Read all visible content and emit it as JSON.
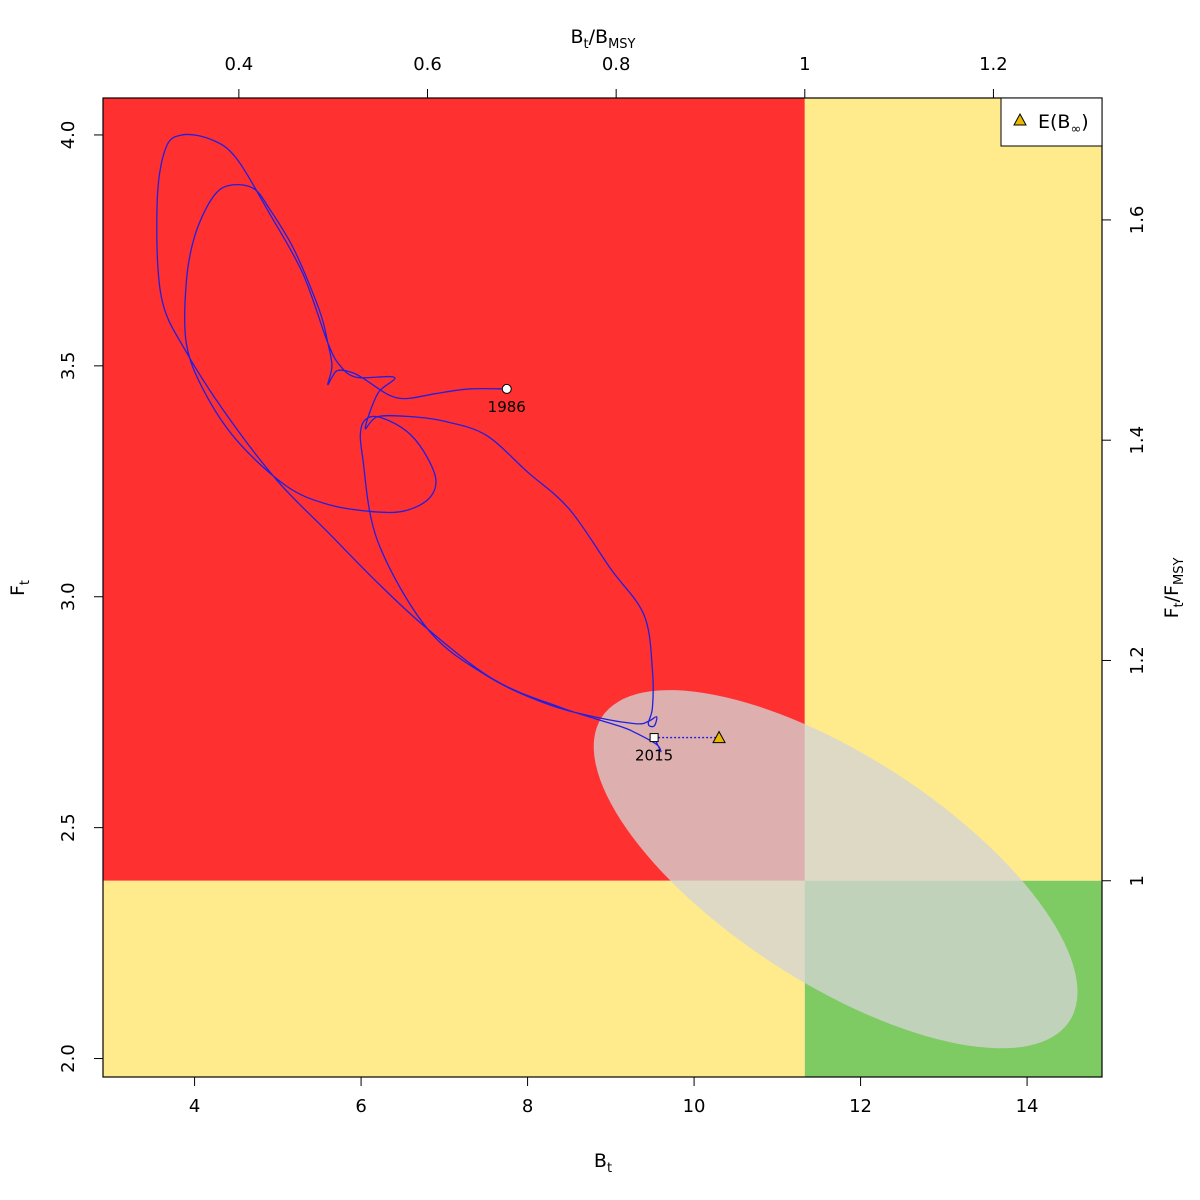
{
  "chart_data": {
    "type": "scatter",
    "title": "",
    "colors": {
      "red_zone": "#ff3030",
      "yellow_zone": "#ffeb8c",
      "green_zone": "#7ecb63",
      "trajectory": "#2020e0",
      "ellipse": "#d3d3d3",
      "triangle": "#e8b800"
    },
    "axes": {
      "x_bottom": {
        "label_main": "B",
        "label_sub": "t",
        "range": [
          2.9,
          14.9
        ],
        "ticks": [
          "4",
          "6",
          "8",
          "10",
          "12",
          "14"
        ],
        "tick_values": [
          4,
          6,
          8,
          10,
          12,
          14
        ]
      },
      "y_left": {
        "label_main": "F",
        "label_sub": "t",
        "range": [
          1.96,
          4.08
        ],
        "ticks": [
          "2.0",
          "2.5",
          "3.0",
          "3.5",
          "4.0"
        ],
        "tick_values": [
          2.0,
          2.5,
          3.0,
          3.5,
          4.0
        ]
      },
      "x_top": {
        "label_main": "B",
        "label_sub": "t",
        "label_mid": "/B",
        "label_sub2": "MSY",
        "ticks": [
          "0.4",
          "0.6",
          "0.8",
          "1",
          "1.2"
        ],
        "tick_values": [
          0.4,
          0.6,
          0.8,
          1.0,
          1.2
        ]
      },
      "y_right": {
        "label_main": "F",
        "label_sub": "t",
        "label_mid": "/F",
        "label_sub2": "MSY",
        "ticks": [
          "1",
          "1.2",
          "1.4",
          "1.6"
        ],
        "tick_values": [
          1.0,
          1.2,
          1.4,
          1.6
        ]
      }
    },
    "reference": {
      "bmsy": 11.33,
      "fmsy": 2.385
    },
    "trajectory": [
      [
        7.75,
        3.45
      ],
      [
        7.3,
        3.45
      ],
      [
        6.9,
        3.44
      ],
      [
        6.6,
        3.43
      ],
      [
        6.45,
        3.43
      ],
      [
        6.3,
        3.44
      ],
      [
        6.05,
        3.47
      ],
      [
        5.9,
        3.485
      ],
      [
        5.72,
        3.49
      ],
      [
        5.65,
        3.475
      ],
      [
        5.6,
        3.46
      ],
      [
        5.65,
        3.5
      ],
      [
        5.6,
        3.55
      ],
      [
        5.5,
        3.62
      ],
      [
        5.2,
        3.75
      ],
      [
        4.9,
        3.84
      ],
      [
        4.7,
        3.885
      ],
      [
        4.4,
        3.89
      ],
      [
        4.2,
        3.86
      ],
      [
        4.0,
        3.78
      ],
      [
        3.9,
        3.68
      ],
      [
        3.9,
        3.55
      ],
      [
        4.1,
        3.45
      ],
      [
        4.5,
        3.34
      ],
      [
        5.1,
        3.24
      ],
      [
        5.6,
        3.2
      ],
      [
        6.1,
        3.185
      ],
      [
        6.5,
        3.185
      ],
      [
        6.8,
        3.21
      ],
      [
        6.9,
        3.25
      ],
      [
        6.8,
        3.3
      ],
      [
        6.6,
        3.35
      ],
      [
        6.35,
        3.38
      ],
      [
        6.12,
        3.39
      ],
      [
        6.0,
        3.365
      ],
      [
        6.02,
        3.3
      ],
      [
        6.2,
        3.12
      ],
      [
        6.8,
        2.93
      ],
      [
        7.5,
        2.83
      ],
      [
        8.2,
        2.77
      ],
      [
        8.8,
        2.74
      ],
      [
        9.3,
        2.725
      ],
      [
        9.45,
        2.73
      ],
      [
        9.55,
        2.74
      ],
      [
        9.52,
        2.72
      ],
      [
        9.45,
        2.725
      ],
      [
        9.5,
        2.76
      ],
      [
        9.5,
        2.84
      ],
      [
        9.4,
        2.96
      ],
      [
        9.0,
        3.06
      ],
      [
        8.5,
        3.19
      ],
      [
        8.0,
        3.27
      ],
      [
        7.5,
        3.35
      ],
      [
        7.0,
        3.38
      ],
      [
        6.6,
        3.39
      ],
      [
        6.2,
        3.39
      ],
      [
        6.05,
        3.365
      ],
      [
        6.2,
        3.44
      ],
      [
        6.4,
        3.475
      ],
      [
        5.95,
        3.475
      ],
      [
        5.75,
        3.5
      ],
      [
        5.6,
        3.55
      ],
      [
        5.3,
        3.7
      ],
      [
        4.9,
        3.83
      ],
      [
        4.5,
        3.95
      ],
      [
        4.2,
        3.99
      ],
      [
        3.85,
        4.0
      ],
      [
        3.65,
        3.97
      ],
      [
        3.55,
        3.85
      ],
      [
        3.6,
        3.65
      ],
      [
        3.9,
        3.53
      ],
      [
        4.4,
        3.39
      ],
      [
        5.0,
        3.25
      ],
      [
        5.6,
        3.14
      ],
      [
        6.2,
        3.03
      ],
      [
        6.8,
        2.93
      ],
      [
        7.6,
        2.82
      ],
      [
        8.4,
        2.76
      ],
      [
        9.1,
        2.72
      ],
      [
        9.3,
        2.705
      ],
      [
        9.55,
        2.68
      ],
      [
        9.6,
        2.665
      ],
      [
        9.52,
        2.695
      ]
    ],
    "terminal_segment": {
      "from": [
        9.52,
        2.695
      ],
      "to": [
        10.3,
        2.695
      ]
    },
    "start_point": {
      "x": 7.75,
      "y": 3.45,
      "label": "1986"
    },
    "end_point": {
      "x": 9.52,
      "y": 2.695,
      "label": "2015"
    },
    "expected_equilibrium": {
      "x": 10.3,
      "y": 2.695
    },
    "ellipse": {
      "center": [
        11.7,
        2.41
      ],
      "rx_data": 3.35,
      "ry_data": 0.245,
      "angle_deg": 33
    },
    "legend": {
      "position": "top-right",
      "label_main": "E(B",
      "label_sub": "∞",
      "label_end": ")"
    }
  }
}
